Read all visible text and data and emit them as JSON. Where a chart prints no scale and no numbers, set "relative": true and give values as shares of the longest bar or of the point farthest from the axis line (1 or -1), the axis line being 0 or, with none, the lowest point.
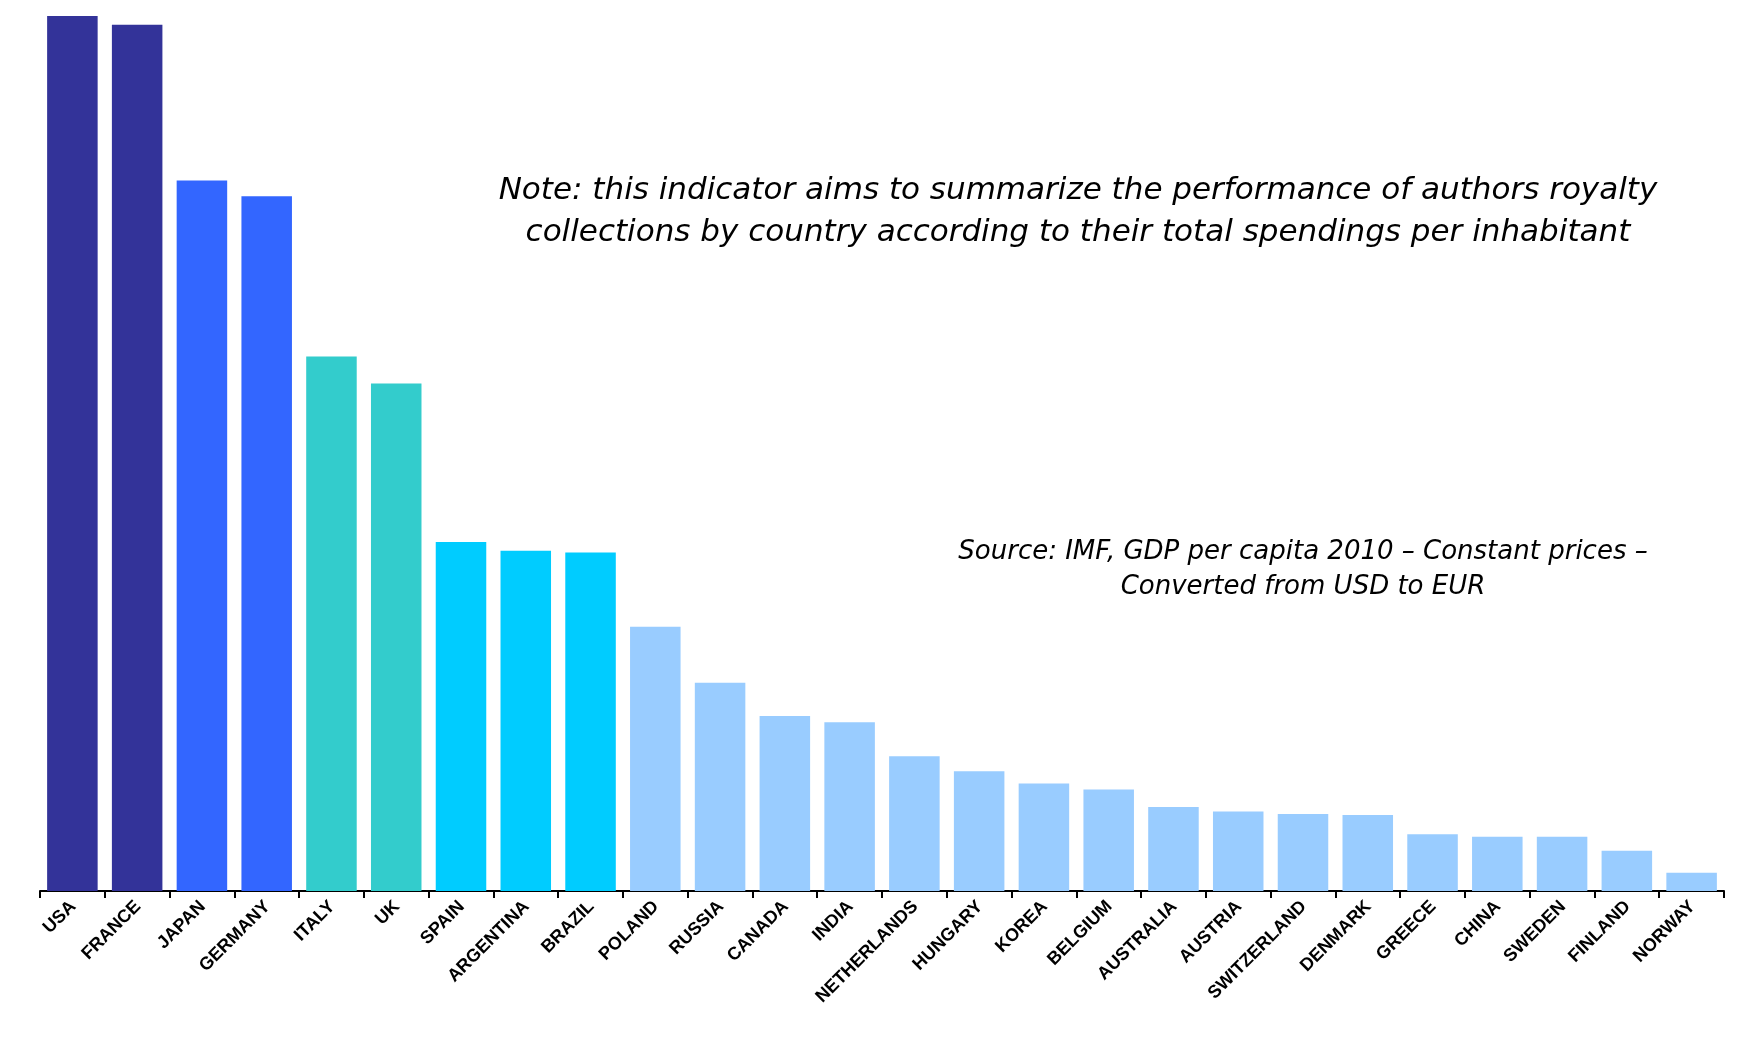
{
  "chart_data": {
    "type": "bar",
    "relative": true,
    "categories": [
      "USA",
      "FRANCE",
      "JAPAN",
      "GERMANY",
      "ITALY",
      "UK",
      "SPAIN",
      "ARGENTINA",
      "BRAZIL",
      "POLAND",
      "RUSSIA",
      "CANADA",
      "INDIA",
      "NETHERLANDS",
      "HUNGARY",
      "KOREA",
      "BELGIUM",
      "AUSTRALIA",
      "AUSTRIA",
      "SWITZERLAND",
      "DENMARK",
      "GREECE",
      "CHINA",
      "SWEDEN",
      "FINLAND",
      "NORWAY"
    ],
    "values": [
      1,
      0.99,
      0.812,
      0.794,
      0.611,
      0.58,
      0.399,
      0.389,
      0.387,
      0.302,
      0.238,
      0.2,
      0.193,
      0.154,
      0.137,
      0.123,
      0.116,
      0.096,
      0.091,
      0.088,
      0.087,
      0.065,
      0.062,
      0.062,
      0.046,
      0.021
    ],
    "colors": [
      "#333399",
      "#333399",
      "#3366ff",
      "#3366ff",
      "#33cccc",
      "#33cccc",
      "#00ccff",
      "#00ccff",
      "#00ccff",
      "#99ccff",
      "#99ccff",
      "#99ccff",
      "#99ccff",
      "#99ccff",
      "#99ccff",
      "#99ccff",
      "#99ccff",
      "#99ccff",
      "#99ccff",
      "#99ccff",
      "#99ccff",
      "#99ccff",
      "#99ccff",
      "#99ccff",
      "#99ccff",
      "#99ccff"
    ],
    "annotations": [
      "Note: this indicator aims to summarize the performance of authors royalty collections by country according to their total spendings per inhabitant",
      "Source: IMF, GDP per capita 2010 – Constant prices – Converted from USD to EUR"
    ]
  }
}
